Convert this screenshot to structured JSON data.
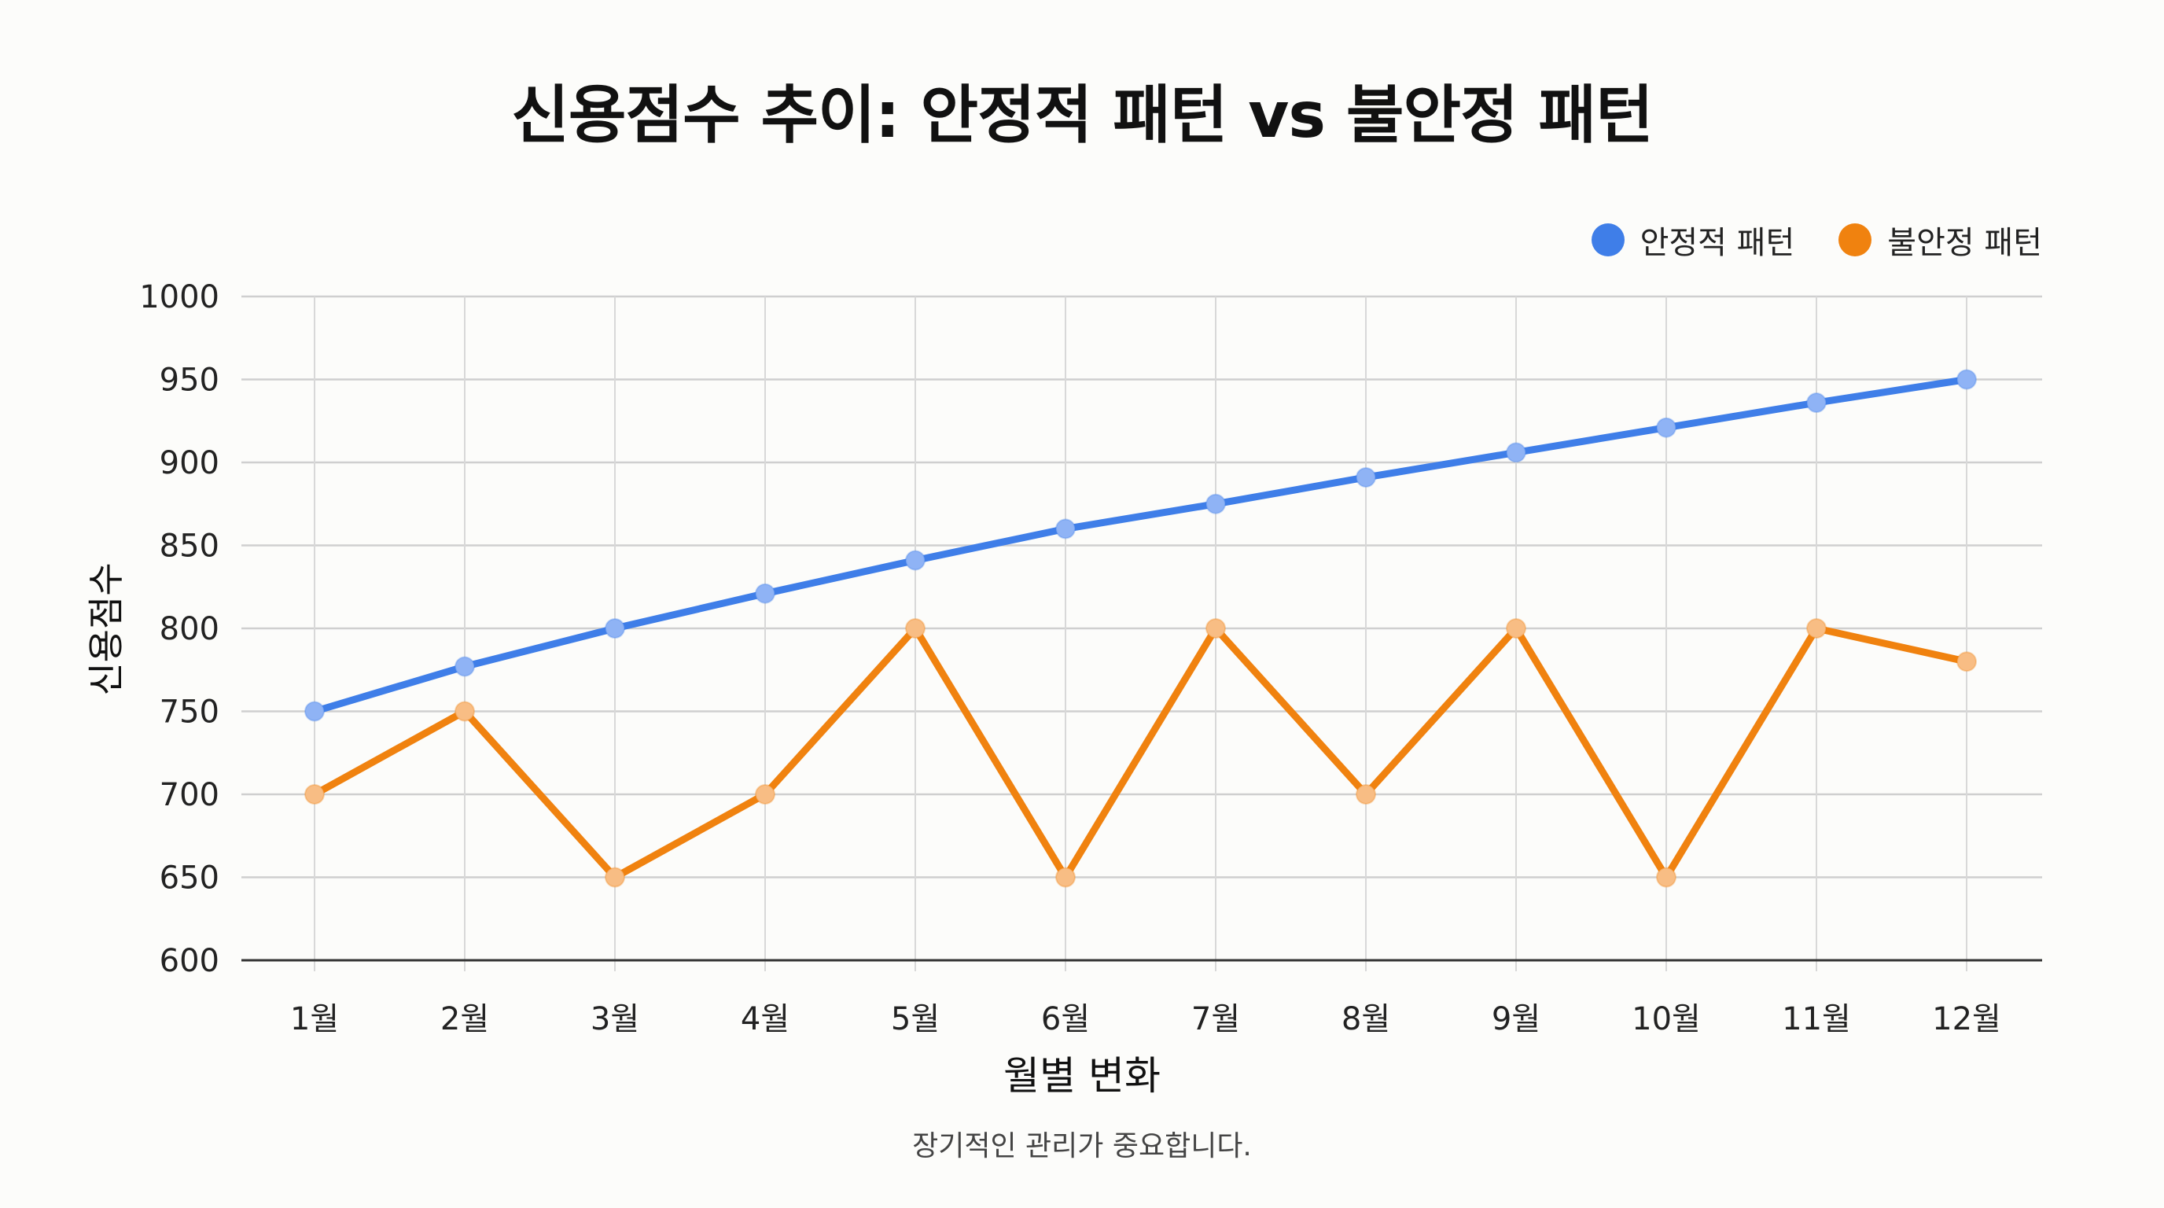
{
  "chart_data": {
    "type": "line",
    "title": "신용점수 추이: 안정적 패턴 vs 불안정 패턴",
    "xlabel": "월별 변화",
    "ylabel": "신용점수",
    "categories": [
      "1월",
      "2월",
      "3월",
      "4월",
      "5월",
      "6월",
      "7월",
      "8월",
      "9월",
      "10월",
      "11월",
      "12월"
    ],
    "series": [
      {
        "name": "안정적 패턴",
        "color": "#3f7ee8",
        "marker_color": "#8fb3f5",
        "values": [
          750,
          777,
          800,
          821,
          841,
          860,
          875,
          891,
          906,
          921,
          936,
          950
        ]
      },
      {
        "name": "불안정 패턴",
        "color": "#f0820f",
        "marker_color": "#f8bd84",
        "values": [
          700,
          750,
          650,
          700,
          800,
          650,
          800,
          700,
          800,
          650,
          800,
          780
        ]
      }
    ],
    "ylim": [
      600,
      1000
    ],
    "yticks": [
      600,
      650,
      700,
      750,
      800,
      850,
      900,
      950,
      1000
    ],
    "grid": true,
    "legend": "top-right",
    "note": "장기적인 관리가 중요합니다."
  }
}
